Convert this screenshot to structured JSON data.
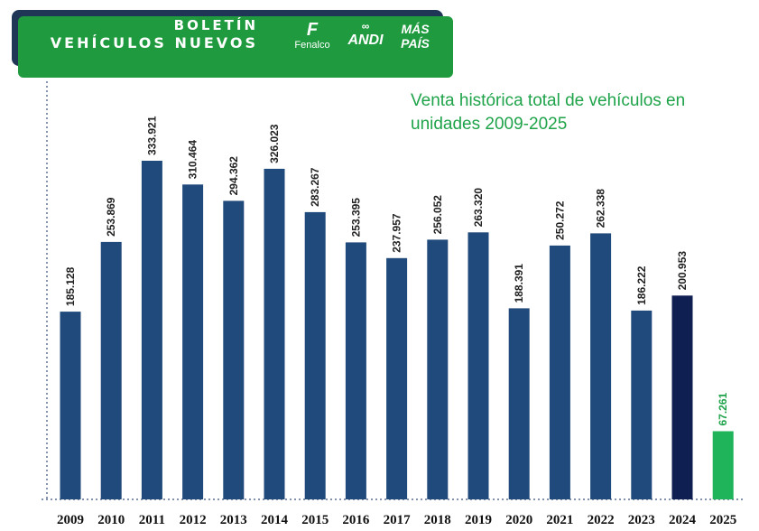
{
  "header": {
    "title_line1": "BOLETÍN",
    "title_line2": "VEHÍCULOS NUEVOS",
    "logos": {
      "fenalco_mark": "F",
      "fenalco_name": "Fenalco",
      "andi_mark": "ANDI",
      "andi_symbol": "∞",
      "maspais_line1": "MÁS",
      "maspais_line2": "PAÍS"
    }
  },
  "colors": {
    "banner_green": "#1f9a3e",
    "banner_shadow": "#1f3656",
    "bar_default": "#214a7c",
    "bar_2024": "#0f1f52",
    "bar_2025": "#1fb45a",
    "subtitle_green": "#1fa34a"
  },
  "chart_data": {
    "type": "bar",
    "title": "Venta histórica total de vehículos en unidades 2009-2025",
    "xlabel": "",
    "ylabel": "",
    "ylim": [
      0,
      350000
    ],
    "grid": false,
    "categories": [
      "2009",
      "2010",
      "2011",
      "2012",
      "2013",
      "2014",
      "2015",
      "2016",
      "2017",
      "2018",
      "2019",
      "2020",
      "2021",
      "2022",
      "2023",
      "2024",
      "2025"
    ],
    "values": [
      185128,
      253869,
      333921,
      310464,
      294362,
      326023,
      283267,
      253395,
      237957,
      256052,
      263320,
      188391,
      250272,
      262338,
      186222,
      200953,
      67261
    ],
    "value_labels": [
      "185.128",
      "253.869",
      "333.921",
      "310.464",
      "294.362",
      "326.023",
      "283.267",
      "253.395",
      "237.957",
      "256.052",
      "263.320",
      "188.391",
      "250.272",
      "262.338",
      "186.222",
      "200.953",
      "67.261"
    ],
    "bar_colors": [
      "#214a7c",
      "#214a7c",
      "#214a7c",
      "#214a7c",
      "#214a7c",
      "#214a7c",
      "#214a7c",
      "#214a7c",
      "#214a7c",
      "#214a7c",
      "#214a7c",
      "#214a7c",
      "#214a7c",
      "#214a7c",
      "#214a7c",
      "#0f1f52",
      "#1fb45a"
    ],
    "label_colors": [
      "#222222",
      "#222222",
      "#222222",
      "#222222",
      "#222222",
      "#222222",
      "#222222",
      "#222222",
      "#222222",
      "#222222",
      "#222222",
      "#222222",
      "#222222",
      "#222222",
      "#222222",
      "#222222",
      "#1fa34a"
    ]
  }
}
